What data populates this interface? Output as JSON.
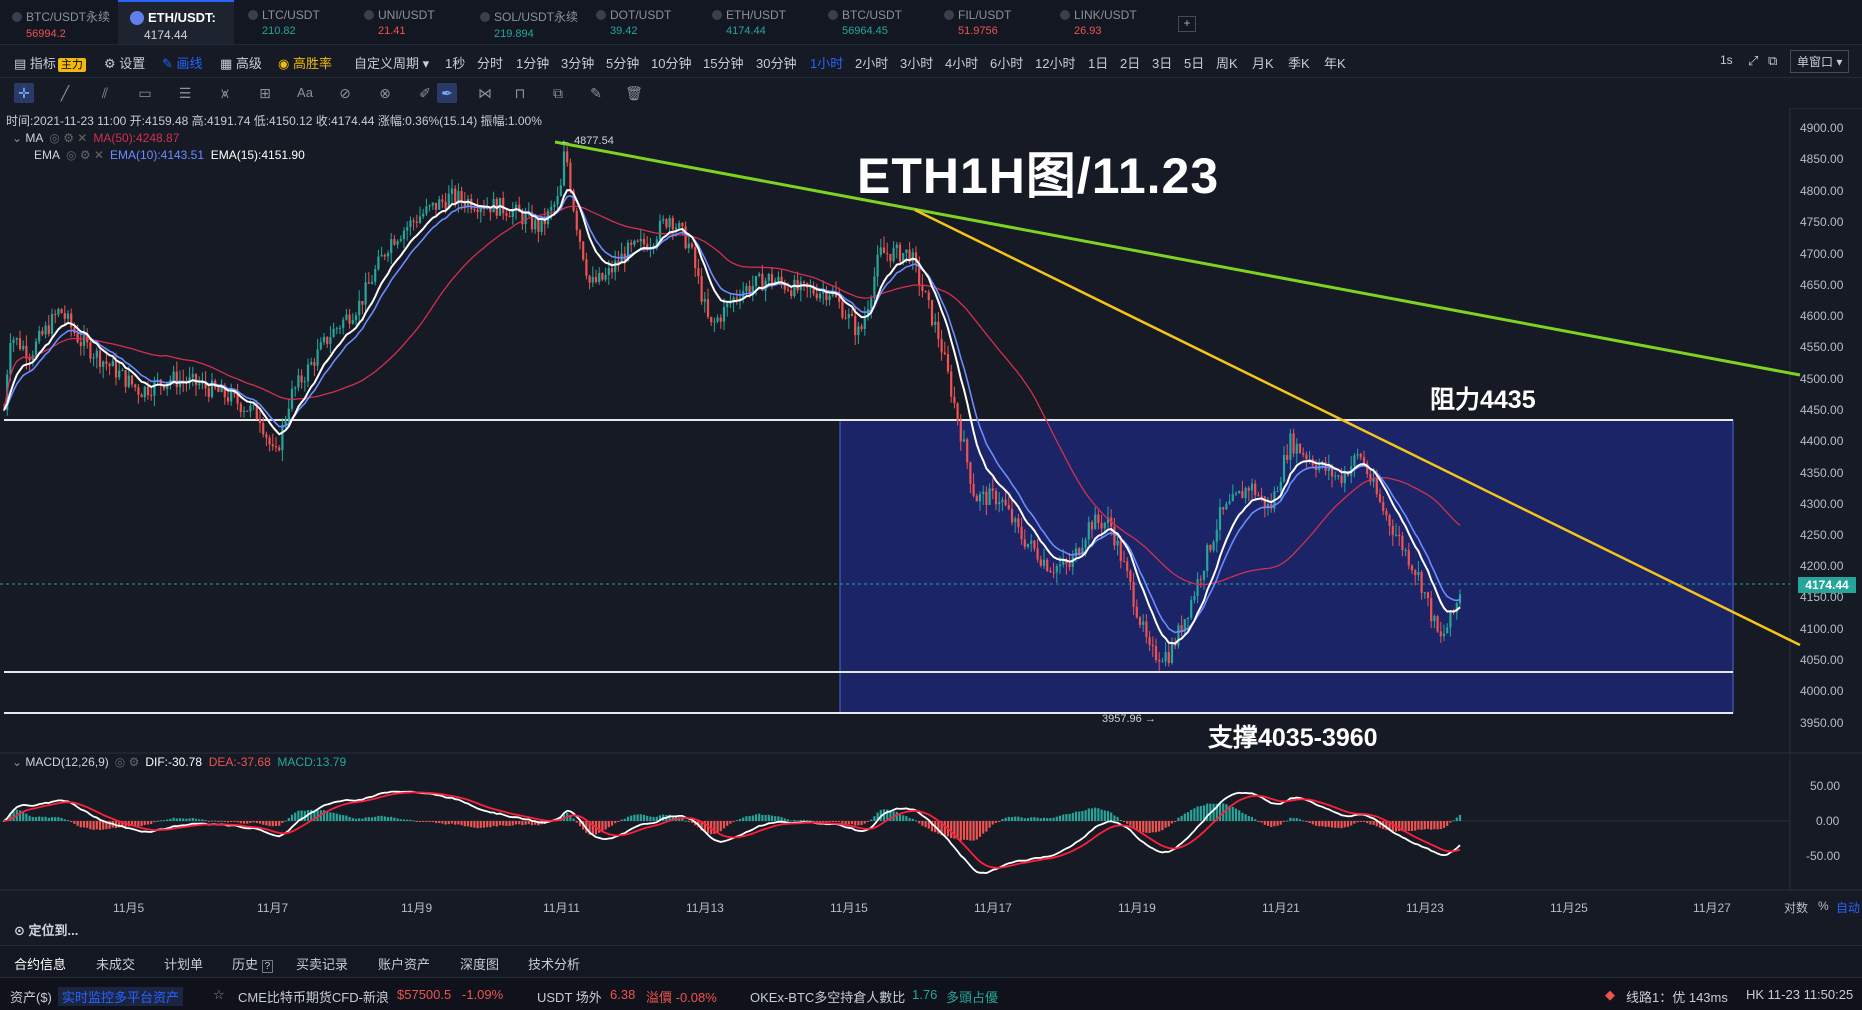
{
  "tabs": [
    {
      "name": "BTC/USDT永续",
      "price": "56994.2",
      "dir": "dn"
    },
    {
      "name": "ETH/USDT:",
      "price": "4174.44",
      "dir": "up",
      "active": true
    },
    {
      "name": "LTC/USDT",
      "price": "210.82",
      "dir": "up"
    },
    {
      "name": "UNI/USDT",
      "price": "21.41",
      "dir": "dn"
    },
    {
      "name": "SOL/USDT永续",
      "price": "219.894",
      "dir": "up"
    },
    {
      "name": "DOT/USDT",
      "price": "39.42",
      "dir": "up"
    },
    {
      "name": "ETH/USDT",
      "price": "4174.44",
      "dir": "up"
    },
    {
      "name": "BTC/USDT",
      "price": "56964.45",
      "dir": "up"
    },
    {
      "name": "FIL/USDT",
      "price": "51.9756",
      "dir": "dn"
    },
    {
      "name": "LINK/USDT",
      "price": "26.93",
      "dir": "dn"
    }
  ],
  "tab_add": "+",
  "toolbar": {
    "indicator": "指标",
    "indicator_badge": "主力",
    "settings": "设置",
    "draw": "画线",
    "advanced": "高级",
    "winrate": "高胜率",
    "custom_period": "自定义周期",
    "periods": [
      "1秒",
      "分时",
      "1分钟",
      "3分钟",
      "5分钟",
      "10分钟",
      "15分钟",
      "30分钟",
      "1小时",
      "2小时",
      "3小时",
      "4小时",
      "6小时",
      "12小时",
      "1日",
      "2日",
      "3日",
      "5日",
      "周K",
      "月K",
      "季K",
      "年K"
    ],
    "active_period": "1小时",
    "refresh": "1s",
    "window_mode": "单窗口"
  },
  "ohlc": "时间:2021-11-23 11:00  开:4159.48  高:4191.74  低:4150.12  收:4174.44  涨幅:0.36%(15.14)  振幅:1.00%",
  "indicators": {
    "ma_name": "MA",
    "ma_value": "MA(50):4248.87",
    "ema_name": "EMA",
    "ema10": "EMA(10):4143.51",
    "ema15": "EMA(15):4151.90",
    "macd_name": "MACD(12,26,9)",
    "dif": "DIF:-30.78",
    "dea": "DEA:-37.68",
    "macd": "MACD:13.79"
  },
  "chart_title": "ETH1H图/11.23",
  "annotations": {
    "resistance": "阻力4435",
    "support": "支撑4035-3960",
    "high_label": "4877.54",
    "low_label": "3957.96"
  },
  "current_price": "4174.44",
  "y_ticks": [
    "4900.00",
    "4850.00",
    "4800.00",
    "4750.00",
    "4700.00",
    "4650.00",
    "4600.00",
    "4550.00",
    "4500.00",
    "4450.00",
    "4400.00",
    "4350.00",
    "4300.00",
    "4250.00",
    "4200.00",
    "4150.00",
    "4100.00",
    "4050.00",
    "4000.00",
    "3950.00"
  ],
  "macd_ticks": [
    "50.00",
    "0.00",
    "-50.00"
  ],
  "x_ticks": [
    "11月5",
    "11月7",
    "11月9",
    "11月11",
    "11月13",
    "11月15",
    "11月17",
    "11月19",
    "11月21",
    "11月23",
    "11月25",
    "11月27"
  ],
  "scale_opts": {
    "log": "对数",
    "pct": "%",
    "auto": "自动"
  },
  "locate": "定位到...",
  "bottom_tabs": [
    "合约信息",
    "未成交",
    "计划单",
    "历史",
    "买卖记录",
    "账户资产",
    "深度图",
    "技术分析"
  ],
  "ticker": {
    "assets": "资产($)",
    "monitor": "实时监控多平台资产",
    "cme": "CME比特币期货CFD-新浪",
    "cme_price": "$57500.5",
    "cme_chg": "-1.09%",
    "usdt": "USDT 场外",
    "usdt_price": "6.38",
    "usdt_premium": "溢價 -0.08%",
    "okex": "OKEx-BTC多空持倉人數比",
    "okex_val": "1.76",
    "okex_side": "多頭占優",
    "line": "线路1：优 143ms",
    "clock": "HK 11-23 11:50:25"
  },
  "colors": {
    "up": "#26a69a",
    "down": "#ef5350",
    "accent": "#2962ff",
    "zone": "#1b2466",
    "green_line": "#7ed321",
    "yellow_line": "#f5c518"
  }
}
